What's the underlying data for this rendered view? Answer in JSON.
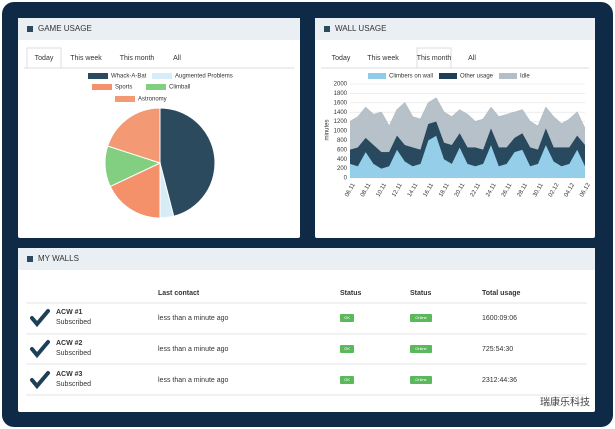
{
  "panels": [
    {
      "title": "GAME USAGE",
      "tabs": [
        "Today",
        "This week",
        "This month",
        "All"
      ],
      "active_tab": 0
    },
    {
      "title": "WALL USAGE",
      "tabs": [
        "Today",
        "This week",
        "This month",
        "All"
      ],
      "active_tab": 2
    },
    {
      "title": "MY WALLS"
    }
  ],
  "chart_data": [
    {
      "type": "pie",
      "categories": [
        "Whack-A-Bat",
        "Augmented Problems",
        "Sports",
        "Climball",
        "Astronomy"
      ],
      "values": [
        46,
        4,
        18,
        12,
        20
      ],
      "colors": [
        "#2b4a5e",
        "#d6ecf7",
        "#f4916b",
        "#82cf82",
        "#f39a74"
      ]
    },
    {
      "type": "area",
      "stacked": true,
      "ylabel": "minutes",
      "grid": true,
      "categories": [
        "06.11",
        null,
        "08.11",
        null,
        "10.11",
        null,
        "12.11",
        null,
        "14.11",
        null,
        "16.11",
        null,
        "18.11",
        null,
        "20.11",
        null,
        "22.11",
        null,
        "24.11",
        null,
        "26.11",
        null,
        "28.11",
        null,
        "30.11",
        null,
        "02.12",
        null,
        "04.12",
        null,
        "06.12"
      ],
      "series": [
        {
          "name": "Climbers on wall",
          "color": "#8fcbe8",
          "values": [
            300,
            250,
            550,
            300,
            200,
            250,
            600,
            350,
            250,
            300,
            800,
            900,
            400,
            300,
            650,
            300,
            250,
            300,
            700,
            250,
            300,
            550,
            600,
            250,
            300,
            700,
            350,
            250,
            300,
            600,
            250
          ]
        },
        {
          "name": "Other usage",
          "color": "#1e3f55",
          "values": [
            300,
            400,
            300,
            400,
            350,
            300,
            300,
            350,
            400,
            300,
            350,
            300,
            350,
            400,
            300,
            350,
            400,
            300,
            350,
            400,
            350,
            300,
            350,
            400,
            300,
            350,
            300,
            400,
            350,
            300,
            450
          ]
        },
        {
          "name": "Idle",
          "color": "#b3bec6",
          "values": [
            600,
            650,
            650,
            650,
            850,
            550,
            550,
            900,
            650,
            650,
            450,
            500,
            650,
            600,
            500,
            700,
            550,
            650,
            450,
            650,
            700,
            550,
            500,
            550,
            500,
            450,
            650,
            500,
            600,
            500,
            350
          ]
        }
      ],
      "ylim": [
        0,
        2000
      ],
      "yticks": [
        0,
        200,
        400,
        600,
        800,
        1000,
        1200,
        1400,
        1600,
        1800,
        2000
      ]
    }
  ],
  "table": {
    "columns": [
      "Last contact",
      "Status",
      "Status",
      "Total usage"
    ],
    "rows": [
      {
        "name": "ACW #1",
        "subscription": "Subscribed",
        "last_contact": "less than a minute ago",
        "status": "OK",
        "connection": "Online",
        "total": "1600:09:06"
      },
      {
        "name": "ACW #2",
        "subscription": "Subscribed",
        "last_contact": "less than a minute ago",
        "status": "OK",
        "connection": "Online",
        "total": "725:54:30"
      },
      {
        "name": "ACW #3",
        "subscription": "Subscribed",
        "last_contact": "less than a minute ago",
        "status": "OK",
        "connection": "Online",
        "total": "2312:44:36"
      }
    ]
  },
  "watermark": "瑞康乐科技"
}
